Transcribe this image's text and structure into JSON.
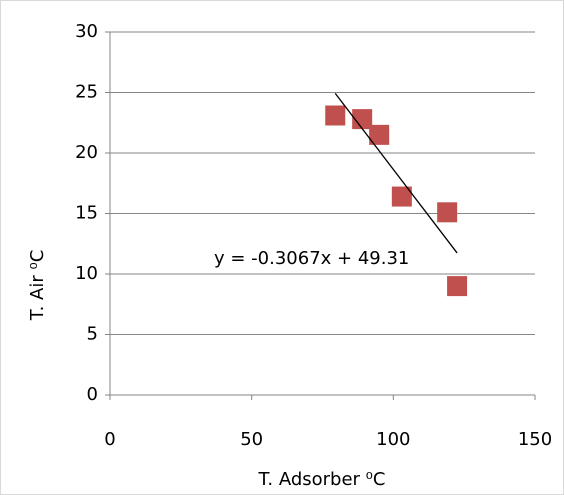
{
  "chart_data": {
    "type": "scatter",
    "x_label": "T. Adsorber  ⁰C",
    "y_label": "T. Air  ⁰C",
    "x": [
      79.5,
      89,
      95,
      103,
      119,
      122.5
    ],
    "series": [
      {
        "name": "T. Air",
        "color": "#c0504d",
        "values": [
          23.1,
          22.8,
          21.5,
          16.4,
          15.1,
          9.0
        ]
      }
    ],
    "xlim": [
      0,
      150
    ],
    "xticks": [
      0,
      50,
      100,
      150
    ],
    "ylim": [
      0,
      30
    ],
    "yticks": [
      0,
      5,
      10,
      15,
      20,
      25,
      30
    ],
    "grid": true,
    "trendline": {
      "label": "y = -0.3067x + 49.31",
      "slope": -0.3067,
      "intercept": 49.31,
      "color": "#000000"
    }
  }
}
